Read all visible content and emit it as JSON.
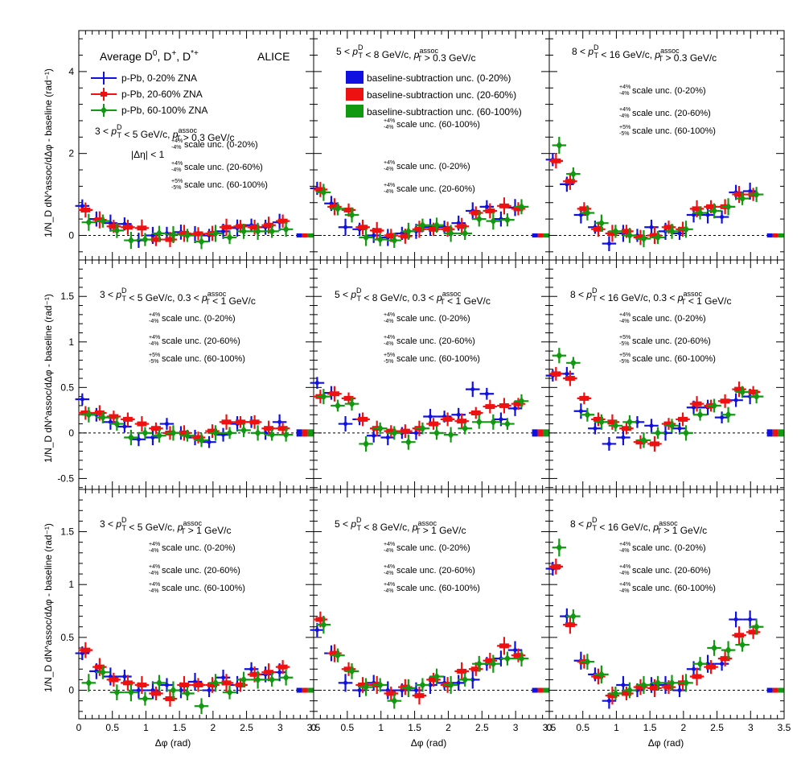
{
  "figure": {
    "title": "Average D0, D+, D*+",
    "collab": "ALICE",
    "eta_cut": "|Δη| < 1",
    "xlabel": "Δφ (rad)",
    "ylabel": "1/N_D dN^assoc/dΔφ - baseline (rad⁻¹)"
  },
  "legend": {
    "series": [
      {
        "label": "p-Pb, 0-20% ZNA",
        "color": "#1010e0"
      },
      {
        "label": "p-Pb, 20-60% ZNA",
        "color": "#ee1111"
      },
      {
        "label": "p-Pb, 60-100% ZNA",
        "color": "#119911"
      }
    ],
    "baseline_boxes": [
      {
        "label": "baseline-subtraction unc. (0-20%)",
        "color": "#1010e0"
      },
      {
        "label": "baseline-subtraction unc. (20-60%)",
        "color": "#ee1111"
      },
      {
        "label": "baseline-subtraction unc. (60-100%)",
        "color": "#119911"
      }
    ]
  },
  "colors": {
    "s0": "#1010e0",
    "s1": "#ee1111",
    "s2": "#119911"
  },
  "chart_data": [
    {
      "type": "scatter",
      "panel": 1,
      "title": "3 < pT^D < 5 GeV/c, pT^assoc > 0.3 GeV/c",
      "ylim": [
        -0.6,
        5.0
      ],
      "yticks": [
        0,
        2,
        4
      ],
      "xlim": [
        0,
        3.5
      ],
      "scale": [
        {
          "up": "+4%",
          "dn": "-4%",
          "label": "scale unc. (0-20%)"
        },
        {
          "up": "+4%",
          "dn": "-4%",
          "label": "scale unc. (20-60%)"
        },
        {
          "up": "+5%",
          "dn": "-5%",
          "label": "scale unc. (60-100%)"
        }
      ],
      "x": [
        0.1,
        0.31,
        0.52,
        0.73,
        0.94,
        1.15,
        1.36,
        1.57,
        1.78,
        1.99,
        2.2,
        2.41,
        2.62,
        2.83,
        3.04
      ],
      "series": [
        {
          "name": "p-Pb, 0-20% ZNA",
          "values": [
            0.72,
            0.4,
            0.3,
            0.28,
            -0.12,
            0.0,
            0.05,
            0.08,
            0.02,
            0.0,
            0.1,
            0.18,
            0.25,
            0.2,
            0.32
          ],
          "baseline": 0.0
        },
        {
          "name": "p-Pb, 20-60% ZNA",
          "values": [
            0.62,
            0.38,
            0.22,
            0.2,
            0.18,
            -0.1,
            -0.1,
            0.05,
            0.04,
            0.05,
            0.2,
            0.22,
            0.2,
            0.25,
            0.35
          ],
          "baseline": 0.0
        },
        {
          "name": "p-Pb, 60-100% ZNA",
          "values": [
            0.32,
            0.35,
            0.12,
            -0.12,
            -0.1,
            0.05,
            0.02,
            0.0,
            -0.15,
            0.05,
            -0.05,
            0.1,
            0.1,
            0.1,
            0.15
          ],
          "baseline": 0.0
        }
      ]
    },
    {
      "type": "scatter",
      "panel": 2,
      "title": "5 < pT^D < 8 GeV/c, pT^assoc > 0.3 GeV/c",
      "ylim": [
        -0.6,
        5.0
      ],
      "yticks": [
        0,
        2,
        4
      ],
      "xlim": [
        0,
        3.5
      ],
      "scale": [
        {
          "up": "+4%",
          "dn": "-4%",
          "label": "scale unc. (60-100%)"
        },
        {
          "up": "+4%",
          "dn": "-4%",
          "label": "scale unc. (0-20%)"
        },
        {
          "up": "+4%",
          "dn": "-4%",
          "label": "scale unc. (20-60%)"
        }
      ],
      "x": [
        0.1,
        0.31,
        0.52,
        0.73,
        0.94,
        1.15,
        1.36,
        1.57,
        1.78,
        1.99,
        2.2,
        2.41,
        2.62,
        2.83,
        3.04
      ],
      "series": [
        {
          "name": "p-Pb, 0-20% ZNA",
          "values": [
            1.15,
            0.78,
            0.2,
            0.15,
            0.0,
            -0.05,
            0.05,
            0.1,
            0.2,
            0.2,
            0.3,
            0.6,
            0.7,
            0.4,
            0.68
          ],
          "baseline": 0.0
        },
        {
          "name": "p-Pb, 20-60% ZNA",
          "values": [
            1.12,
            0.7,
            0.62,
            0.2,
            0.12,
            0.0,
            -0.02,
            0.15,
            0.15,
            0.15,
            0.22,
            0.55,
            0.6,
            0.72,
            0.65
          ],
          "baseline": 0.0
        },
        {
          "name": "p-Pb, 60-100% ZNA",
          "values": [
            1.05,
            0.65,
            0.5,
            -0.05,
            -0.1,
            -0.12,
            0.1,
            0.25,
            0.25,
            0.05,
            0.05,
            0.4,
            0.35,
            0.38,
            0.7
          ],
          "baseline": 0.0
        }
      ]
    },
    {
      "type": "scatter",
      "panel": 3,
      "title": "8 < pT^D < 16 GeV/c, pT^assoc > 0.3 GeV/c",
      "ylim": [
        -0.6,
        5.0
      ],
      "yticks": [
        0,
        2,
        4
      ],
      "xlim": [
        0,
        3.5
      ],
      "scale": [
        {
          "up": "+4%",
          "dn": "-4%",
          "label": "scale unc. (0-20%)"
        },
        {
          "up": "+4%",
          "dn": "-4%",
          "label": "scale unc. (20-60%)"
        },
        {
          "up": "+5%",
          "dn": "-5%",
          "label": "scale unc. (60-100%)"
        }
      ],
      "x": [
        0.1,
        0.31,
        0.52,
        0.73,
        0.94,
        1.15,
        1.36,
        1.57,
        1.78,
        1.99,
        2.2,
        2.41,
        2.62,
        2.83,
        3.04
      ],
      "series": [
        {
          "name": "p-Pb, 0-20% ZNA",
          "values": [
            1.85,
            1.25,
            0.5,
            0.2,
            -0.2,
            0.05,
            0.0,
            0.2,
            0.1,
            0.05,
            0.5,
            0.5,
            0.45,
            1.05,
            1.08
          ],
          "baseline": 0.0
        },
        {
          "name": "p-Pb, 20-60% ZNA",
          "values": [
            1.82,
            1.32,
            0.65,
            0.15,
            0.05,
            0.1,
            -0.05,
            0.0,
            0.2,
            0.15,
            0.65,
            0.7,
            0.7,
            1.0,
            1.0
          ],
          "baseline": 0.0
        },
        {
          "name": "p-Pb, 60-100% ZNA",
          "values": [
            2.2,
            1.5,
            0.55,
            0.3,
            0.1,
            0.0,
            -0.08,
            -0.05,
            0.1,
            0.15,
            0.55,
            0.6,
            0.7,
            0.9,
            1.0
          ],
          "baseline": 0.0
        }
      ]
    },
    {
      "type": "scatter",
      "panel": 4,
      "title": "3 < pT^D < 5 GeV/c, 0.3 < pT^assoc < 1 GeV/c",
      "ylim": [
        -0.62,
        1.9
      ],
      "yticks": [
        -0.5,
        0,
        0.5,
        1,
        1.5
      ],
      "xlim": [
        0,
        3.5
      ],
      "scale": [
        {
          "up": "+4%",
          "dn": "-4%",
          "label": "scale unc. (0-20%)"
        },
        {
          "up": "+4%",
          "dn": "-4%",
          "label": "scale unc. (20-60%)"
        },
        {
          "up": "+5%",
          "dn": "-5%",
          "label": "scale unc. (60-100%)"
        }
      ],
      "x": [
        0.1,
        0.31,
        0.52,
        0.73,
        0.94,
        1.15,
        1.36,
        1.57,
        1.78,
        1.99,
        2.2,
        2.41,
        2.62,
        2.83,
        3.04
      ],
      "series": [
        {
          "name": "p-Pb, 0-20% ZNA",
          "values": [
            0.37,
            0.2,
            0.12,
            0.07,
            -0.07,
            -0.05,
            0.1,
            0.0,
            -0.05,
            -0.1,
            -0.02,
            0.1,
            0.12,
            0.0,
            0.12
          ],
          "baseline": 0.0
        },
        {
          "name": "p-Pb, 20-60% ZNA",
          "values": [
            0.22,
            0.22,
            0.18,
            0.15,
            0.1,
            0.05,
            0.0,
            0.0,
            -0.05,
            0.02,
            0.12,
            0.12,
            0.12,
            0.05,
            0.05
          ],
          "baseline": 0.0
        },
        {
          "name": "p-Pb, 60-100% ZNA",
          "values": [
            0.2,
            0.17,
            0.1,
            -0.05,
            0.0,
            -0.03,
            0.0,
            -0.03,
            -0.08,
            0.0,
            0.0,
            0.03,
            0.0,
            -0.02,
            -0.02
          ],
          "baseline": 0.0
        }
      ]
    },
    {
      "type": "scatter",
      "panel": 5,
      "title": "5 < pT^D < 8 GeV/c, 0.3 < pT^assoc < 1 GeV/c",
      "ylim": [
        -0.62,
        1.9
      ],
      "yticks": [
        -0.5,
        0,
        0.5,
        1,
        1.5
      ],
      "xlim": [
        0,
        3.5
      ],
      "scale": [
        {
          "up": "+4%",
          "dn": "-4%",
          "label": "scale unc. (0-20%)"
        },
        {
          "up": "+4%",
          "dn": "-4%",
          "label": "scale unc. (20-60%)"
        },
        {
          "up": "+5%",
          "dn": "-5%",
          "label": "scale unc. (60-100%)"
        }
      ],
      "x": [
        0.1,
        0.31,
        0.52,
        0.73,
        0.94,
        1.15,
        1.36,
        1.57,
        1.78,
        1.99,
        2.2,
        2.41,
        2.62,
        2.83,
        3.04
      ],
      "series": [
        {
          "name": "p-Pb, 0-20% ZNA",
          "values": [
            0.55,
            0.44,
            0.1,
            0.15,
            -0.03,
            -0.05,
            0.0,
            0.0,
            0.18,
            0.18,
            0.2,
            0.48,
            0.43,
            0.15,
            0.27
          ],
          "baseline": 0.0
        },
        {
          "name": "p-Pb, 20-60% ZNA",
          "values": [
            0.4,
            0.43,
            0.38,
            0.15,
            0.05,
            0.02,
            0.02,
            0.05,
            0.1,
            0.15,
            0.13,
            0.22,
            0.29,
            0.3,
            0.32
          ],
          "baseline": 0.0
        },
        {
          "name": "p-Pb, 60-100% ZNA",
          "values": [
            0.4,
            0.3,
            0.32,
            -0.12,
            0.05,
            0.0,
            -0.1,
            0.05,
            0.0,
            -0.02,
            0.05,
            0.12,
            0.12,
            0.1,
            0.35
          ],
          "baseline": 0.0
        }
      ]
    },
    {
      "type": "scatter",
      "panel": 6,
      "title": "8 < pT^D < 16 GeV/c, 0.3 < pT^assoc < 1 GeV/c",
      "ylim": [
        -0.62,
        1.9
      ],
      "yticks": [
        -0.5,
        0,
        0.5,
        1,
        1.5
      ],
      "xlim": [
        0,
        3.5
      ],
      "scale": [
        {
          "up": "+4%",
          "dn": "-4%",
          "label": "scale unc. (0-20%)"
        },
        {
          "up": "+5%",
          "dn": "-5%",
          "label": "scale unc. (20-60%)"
        },
        {
          "up": "+5%",
          "dn": "-5%",
          "label": "scale unc. (60-100%)"
        }
      ],
      "x": [
        0.1,
        0.31,
        0.52,
        0.73,
        0.94,
        1.15,
        1.36,
        1.57,
        1.78,
        1.99,
        2.2,
        2.41,
        2.62,
        2.83,
        3.04
      ],
      "series": [
        {
          "name": "p-Pb, 0-20% ZNA",
          "values": [
            0.63,
            0.65,
            0.24,
            0.05,
            -0.12,
            -0.05,
            0.12,
            0.08,
            0.0,
            0.05,
            0.28,
            0.28,
            0.17,
            0.36,
            0.4
          ],
          "baseline": 0.0
        },
        {
          "name": "p-Pb, 20-60% ZNA",
          "values": [
            0.65,
            0.6,
            0.38,
            0.15,
            0.12,
            0.05,
            -0.1,
            -0.12,
            0.1,
            0.15,
            0.32,
            0.3,
            0.35,
            0.48,
            0.45
          ],
          "baseline": 0.0
        },
        {
          "name": "p-Pb, 60-100% ZNA",
          "values": [
            0.85,
            0.77,
            0.2,
            0.12,
            0.08,
            0.12,
            -0.08,
            0.0,
            0.08,
            0.0,
            0.2,
            0.3,
            0.2,
            0.45,
            0.4
          ],
          "baseline": 0.0
        }
      ]
    },
    {
      "type": "scatter",
      "panel": 7,
      "title": "3 < pT^D < 5 GeV/c, pT^assoc > 1 GeV/c",
      "ylim": [
        -0.27,
        1.9
      ],
      "yticks": [
        0,
        0.5,
        1,
        1.5
      ],
      "xlim": [
        0,
        3.5
      ],
      "scale": [
        {
          "up": "+4%",
          "dn": "-4%",
          "label": "scale unc. (0-20%)"
        },
        {
          "up": "+4%",
          "dn": "-4%",
          "label": "scale unc. (20-60%)"
        },
        {
          "up": "+4%",
          "dn": "-4%",
          "label": "scale unc. (60-100%)"
        }
      ],
      "x": [
        0.1,
        0.31,
        0.52,
        0.73,
        0.94,
        1.15,
        1.36,
        1.57,
        1.78,
        1.99,
        2.2,
        2.41,
        2.62,
        2.83,
        3.04
      ],
      "series": [
        {
          "name": "p-Pb, 0-20% ZNA",
          "values": [
            0.35,
            0.18,
            0.13,
            0.13,
            0.0,
            0.0,
            0.05,
            0.0,
            0.08,
            0.0,
            0.12,
            0.05,
            0.2,
            0.15,
            0.17
          ],
          "baseline": 0.0
        },
        {
          "name": "p-Pb, 20-60% ZNA",
          "values": [
            0.38,
            0.22,
            0.1,
            0.07,
            0.05,
            -0.03,
            -0.08,
            0.05,
            0.05,
            0.05,
            0.07,
            0.05,
            0.15,
            0.17,
            0.22
          ],
          "baseline": 0.0
        },
        {
          "name": "p-Pb, 60-100% ZNA",
          "values": [
            0.07,
            0.17,
            -0.02,
            -0.02,
            -0.08,
            0.07,
            0.0,
            -0.03,
            -0.15,
            0.07,
            -0.02,
            0.1,
            0.1,
            0.1,
            0.12
          ],
          "baseline": 0.0
        }
      ]
    },
    {
      "type": "scatter",
      "panel": 8,
      "title": "5 < pT^D < 8 GeV/c, pT^assoc > 1 GeV/c",
      "ylim": [
        -0.27,
        1.9
      ],
      "yticks": [
        0,
        0.5,
        1,
        1.5
      ],
      "xlim": [
        0,
        3.5
      ],
      "scale": [
        {
          "up": "+4%",
          "dn": "-4%",
          "label": "scale unc. (0-20%)"
        },
        {
          "up": "+4%",
          "dn": "-4%",
          "label": "scale unc. (20-60%)"
        },
        {
          "up": "+4%",
          "dn": "-4%",
          "label": "scale unc. (60-100%)"
        }
      ],
      "x": [
        0.1,
        0.31,
        0.52,
        0.73,
        0.94,
        1.15,
        1.36,
        1.57,
        1.78,
        1.99,
        2.2,
        2.41,
        2.62,
        2.83,
        3.04
      ],
      "series": [
        {
          "name": "p-Pb, 0-20% ZNA",
          "values": [
            0.57,
            0.35,
            0.07,
            0.0,
            0.07,
            0.0,
            0.0,
            0.0,
            0.05,
            0.07,
            0.07,
            0.1,
            0.25,
            0.3,
            0.38
          ],
          "baseline": 0.0
        },
        {
          "name": "p-Pb, 20-60% ZNA",
          "values": [
            0.67,
            0.35,
            0.2,
            0.05,
            0.05,
            -0.03,
            0.03,
            -0.05,
            0.1,
            0.05,
            0.18,
            0.2,
            0.28,
            0.42,
            0.33
          ],
          "baseline": 0.0
        },
        {
          "name": "p-Pb, 60-100% ZNA",
          "values": [
            0.62,
            0.33,
            0.18,
            0.03,
            0.05,
            -0.1,
            0.02,
            0.05,
            0.13,
            0.05,
            0.1,
            0.25,
            0.25,
            0.3,
            0.3
          ],
          "baseline": 0.0
        }
      ]
    },
    {
      "type": "scatter",
      "panel": 9,
      "title": "8 < pT^D < 16 GeV/c, pT^assoc > 1 GeV/c",
      "ylim": [
        -0.27,
        1.9
      ],
      "yticks": [
        0,
        0.5,
        1,
        1.5
      ],
      "xlim": [
        0,
        3.5
      ],
      "scale": [
        {
          "up": "+4%",
          "dn": "-4%",
          "label": "scale unc. (0-20%)"
        },
        {
          "up": "+4%",
          "dn": "-4%",
          "label": "scale unc. (20-60%)"
        },
        {
          "up": "+4%",
          "dn": "-4%",
          "label": "scale unc. (60-100%)"
        }
      ],
      "x": [
        0.1,
        0.31,
        0.52,
        0.73,
        0.94,
        1.15,
        1.36,
        1.57,
        1.78,
        1.99,
        2.2,
        2.41,
        2.62,
        2.83,
        3.04
      ],
      "series": [
        {
          "name": "p-Pb, 0-20% ZNA",
          "values": [
            1.15,
            0.7,
            0.28,
            0.15,
            -0.1,
            0.05,
            0.0,
            0.05,
            0.05,
            0.0,
            0.2,
            0.25,
            0.25,
            0.67,
            0.67
          ],
          "baseline": 0.0
        },
        {
          "name": "p-Pb, 20-60% ZNA",
          "values": [
            1.17,
            0.62,
            0.27,
            0.13,
            -0.05,
            -0.03,
            0.03,
            0.02,
            0.03,
            0.07,
            0.13,
            0.22,
            0.3,
            0.52,
            0.55
          ],
          "baseline": 0.0
        },
        {
          "name": "p-Pb, 60-100% ZNA",
          "values": [
            1.35,
            0.7,
            0.27,
            0.15,
            -0.03,
            0.0,
            0.05,
            0.07,
            0.07,
            0.07,
            0.25,
            0.4,
            0.38,
            0.43,
            0.6
          ],
          "baseline": 0.0
        }
      ]
    }
  ]
}
